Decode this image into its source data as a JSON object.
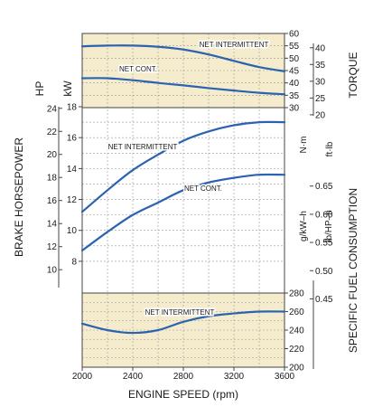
{
  "colors": {
    "panel_fill": "#f4eccd",
    "curve": "#2b63b0",
    "axis": "#444444",
    "grid": "#9a9a9a"
  },
  "chart_data": {
    "type": "line",
    "x": [
      2000,
      2200,
      2400,
      2600,
      2800,
      3000,
      3200,
      3400,
      3600
    ],
    "xlim": [
      2000,
      3600
    ],
    "xticks": [
      "2000",
      "2400",
      "2800",
      "3200",
      "3600"
    ],
    "xlabel": "ENGINE SPEED (rpm)",
    "grid": true,
    "panels": [
      {
        "name": "torque",
        "right_axis_labels": [
          "N·m",
          "ft·lb"
        ],
        "right_title": "TORQUE",
        "nm_ticks": [
          "30",
          "35",
          "40",
          "45",
          "50",
          "55",
          "60"
        ],
        "ftlb_ticks": [
          "20",
          "25",
          "30",
          "35",
          "40"
        ],
        "ylim_nm": [
          30,
          60
        ],
        "series": [
          {
            "name": "NET INTERMITTENT",
            "unit": "N·m",
            "values": [
              54.8,
              55.1,
              55.1,
              54.6,
              53.5,
              51.5,
              48.9,
              46.4,
              44.7
            ]
          },
          {
            "name": "NET CONT.",
            "unit": "N·m",
            "values": [
              41.9,
              41.9,
              41.1,
              40.0,
              39.0,
              37.9,
              36.9,
              36.0,
              35.4
            ]
          }
        ]
      },
      {
        "name": "power",
        "left_title": "BRAKE HORSEPOWER",
        "hp_label": "HP",
        "kw_label": "kW",
        "kw_ticks": [
          "8",
          "10",
          "12",
          "14",
          "16",
          "18"
        ],
        "hp_ticks": [
          "10",
          "12",
          "14",
          "16",
          "18",
          "20",
          "22",
          "24"
        ],
        "ylim_kw": [
          7,
          18
        ],
        "series": [
          {
            "name": "NET INTERMITTENT",
            "unit": "kW",
            "values": [
              11.2,
              12.6,
              13.9,
              14.9,
              15.8,
              16.4,
              16.8,
              17.0,
              17.0
            ]
          },
          {
            "name": "NET CONT.",
            "unit": "kW",
            "values": [
              8.7,
              9.9,
              11.0,
              11.8,
              12.6,
              13.1,
              13.4,
              13.6,
              13.6
            ]
          }
        ]
      },
      {
        "name": "fuel",
        "left_axis_labels": [
          "g/kW–h",
          "lb/HP–h"
        ],
        "right_title": "SPECIFIC FUEL CONSUMPTION",
        "gkwh_ticks": [
          "200",
          "220",
          "240",
          "260",
          "280"
        ],
        "lbhph_ticks": [
          "0.45",
          "0.50",
          "0.55",
          "0.60",
          "0.65"
        ],
        "ylim_gkwh": [
          200,
          280
        ],
        "series": [
          {
            "name": "NET INTERMITTENT",
            "unit": "g/kW–h",
            "values": [
              247,
              240,
              237,
              240,
              249,
              255,
              258,
              260,
              260
            ]
          }
        ]
      }
    ]
  }
}
